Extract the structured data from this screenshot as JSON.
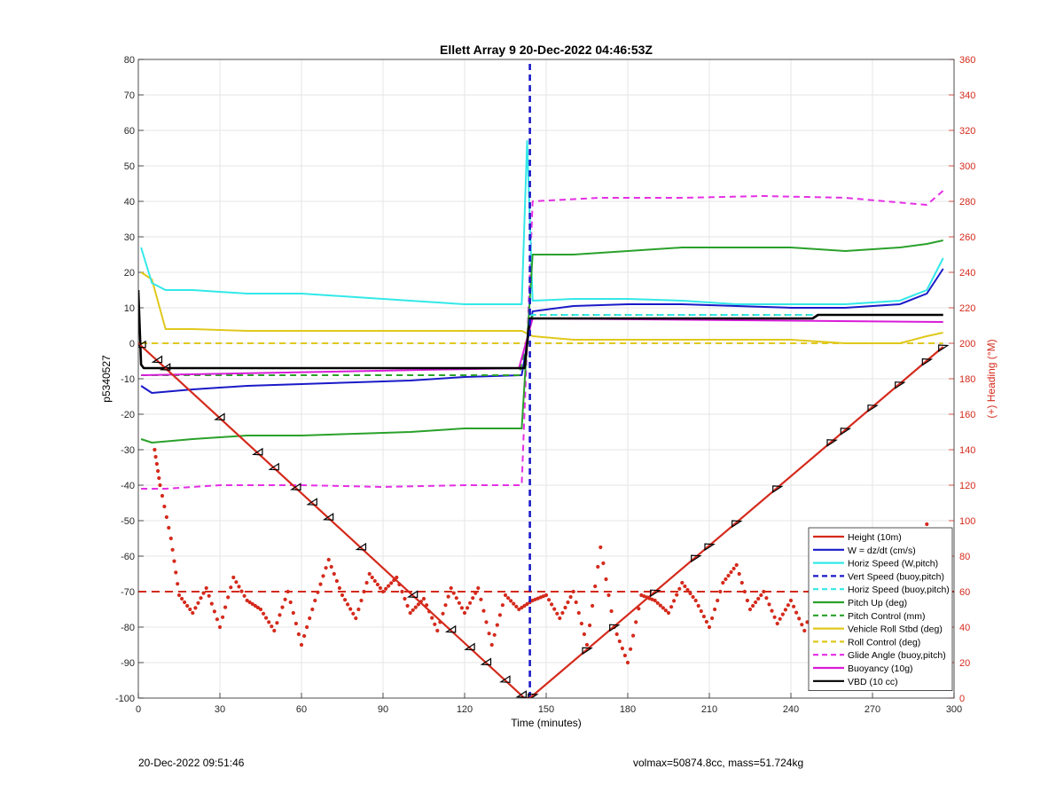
{
  "chart_data": {
    "type": "line",
    "title": "Ellett Array 9 20-Dec-2022 04:46:53Z",
    "xlabel": "Time (minutes)",
    "ylabel": "p5340527",
    "y2label": "(+) Heading (°M)",
    "xlim": [
      0,
      300
    ],
    "ylim": [
      -100,
      80
    ],
    "y2lim": [
      0,
      360
    ],
    "xticks": [
      0,
      30,
      60,
      90,
      120,
      150,
      180,
      210,
      240,
      270,
      300
    ],
    "yticks": [
      -100,
      -90,
      -80,
      -70,
      -60,
      -50,
      -40,
      -30,
      -20,
      -10,
      0,
      10,
      20,
      30,
      40,
      50,
      60,
      70,
      80
    ],
    "y2ticks": [
      0,
      20,
      40,
      60,
      80,
      100,
      120,
      140,
      160,
      180,
      200,
      220,
      240,
      260,
      280,
      300,
      320,
      340,
      360
    ],
    "grid": true,
    "legend_position": "bottom-right",
    "colors": {
      "height": "#d42a1c",
      "w": "#1a1ac8",
      "horiz": "#33e8e8",
      "pitch": "#2aa12a",
      "roll": "#e0c81c",
      "glide": "#e52ee5",
      "buoyancy": "#d81cd8",
      "vbd": "#000000",
      "heading": "#d42a1c"
    },
    "series": [
      {
        "name": "Height (10m)",
        "style": "solid",
        "x": [
          0,
          142,
          144,
          296
        ],
        "y": [
          0,
          -100,
          -100,
          -1
        ]
      },
      {
        "name": "W = dz/dt (cm/s)",
        "style": "solid",
        "x": [
          1,
          5,
          20,
          40,
          60,
          80,
          100,
          120,
          141,
          145,
          160,
          180,
          200,
          220,
          240,
          260,
          280,
          290,
          296
        ],
        "y": [
          -12,
          -14,
          -13,
          -12,
          -11.5,
          -11,
          -10.5,
          -9.5,
          -9,
          9,
          10.5,
          11,
          11,
          10.5,
          10,
          10,
          11,
          14,
          21
        ]
      },
      {
        "name": "Horiz Speed (W,pitch)",
        "style": "solid",
        "x": [
          1,
          5,
          10,
          20,
          40,
          60,
          80,
          100,
          120,
          141,
          143,
          145,
          160,
          180,
          200,
          220,
          240,
          260,
          280,
          290,
          296
        ],
        "y": [
          27,
          17,
          15,
          15,
          14,
          14,
          13,
          12,
          11,
          11,
          57,
          12,
          12.5,
          12.5,
          12,
          11,
          11,
          11,
          12,
          15,
          24
        ]
      },
      {
        "name": "Vert Speed (buoy,pitch)",
        "style": "dashed",
        "x": [
          144,
          144
        ],
        "y": [
          -100,
          80
        ]
      },
      {
        "name": "Horiz Speed (buoy,pitch)",
        "style": "dashed",
        "x": [
          144,
          150,
          200,
          250,
          296
        ],
        "y": [
          8,
          8,
          8,
          8,
          8
        ]
      },
      {
        "name": "Pitch Up (deg)",
        "style": "solid",
        "x": [
          1,
          5,
          20,
          40,
          60,
          80,
          100,
          120,
          141,
          145,
          160,
          180,
          200,
          220,
          240,
          260,
          280,
          290,
          296
        ],
        "y": [
          -27,
          -28,
          -27,
          -26,
          -26,
          -25.5,
          -25,
          -24,
          -24,
          25,
          25,
          26,
          27,
          27,
          27,
          26,
          27,
          28,
          29
        ]
      },
      {
        "name": "Pitch Control (mm)",
        "style": "dashed",
        "x": [
          1,
          140,
          145,
          296
        ],
        "y": [
          -9,
          -9,
          8,
          8
        ]
      },
      {
        "name": "Vehicle Roll Stbd (deg)",
        "style": "solid",
        "x": [
          1,
          5,
          10,
          20,
          40,
          60,
          80,
          100,
          120,
          141,
          145,
          160,
          180,
          200,
          220,
          240,
          260,
          280,
          290,
          296
        ],
        "y": [
          20,
          18,
          4,
          4,
          3.5,
          3.5,
          3.5,
          3.5,
          3.5,
          3.5,
          2,
          1,
          1,
          1,
          1,
          1,
          0,
          0,
          2,
          3
        ]
      },
      {
        "name": "Roll Control (deg)",
        "style": "dashed",
        "x": [
          1,
          140,
          145,
          296
        ],
        "y": [
          0,
          0,
          0,
          0
        ]
      },
      {
        "name": "Glide Angle (buoy,pitch)",
        "style": "dashed",
        "x": [
          1,
          10,
          30,
          60,
          90,
          120,
          141,
          145,
          170,
          200,
          230,
          260,
          290,
          296
        ],
        "y": [
          -41,
          -41,
          -40,
          -40,
          -40.5,
          -40,
          -40,
          40,
          41,
          41,
          41.5,
          41,
          39,
          43
        ]
      },
      {
        "name": "Buoyancy (10g)",
        "style": "solid",
        "x": [
          1,
          140,
          145,
          296
        ],
        "y": [
          -9,
          -7,
          7,
          6
        ]
      },
      {
        "name": "VBD (10 cc)",
        "style": "solid",
        "x": [
          0,
          1,
          2,
          142,
          144,
          150,
          248,
          250,
          296
        ],
        "y": [
          15,
          -6,
          -7,
          -7,
          7,
          7,
          7,
          8,
          8
        ]
      }
    ],
    "heading_series": {
      "x": [
        6,
        8,
        12,
        15,
        20,
        25,
        30,
        35,
        40,
        45,
        50,
        55,
        60,
        65,
        70,
        75,
        80,
        85,
        90,
        95,
        100,
        105,
        110,
        115,
        120,
        125,
        130,
        135,
        140,
        145,
        150,
        155,
        160,
        165,
        170,
        175,
        180,
        185,
        190,
        195,
        200,
        205,
        210,
        215,
        220,
        225,
        230,
        235,
        240,
        245,
        250,
        255,
        260,
        265,
        270,
        275,
        280,
        285,
        290,
        295
      ],
      "y": [
        140,
        120,
        90,
        58,
        48,
        62,
        40,
        68,
        55,
        50,
        38,
        60,
        30,
        55,
        78,
        58,
        45,
        70,
        60,
        68,
        48,
        56,
        38,
        62,
        48,
        62,
        30,
        58,
        50,
        55,
        58,
        45,
        60,
        30,
        85,
        40,
        20,
        58,
        55,
        48,
        65,
        55,
        40,
        65,
        75,
        50,
        60,
        42,
        55,
        38,
        62,
        48,
        70,
        45,
        55,
        38,
        60,
        70,
        98,
        55
      ]
    },
    "heading_mean": 60,
    "markers": {
      "descent_x": [
        1,
        7,
        10,
        30,
        44,
        50,
        58,
        64,
        70,
        82,
        101,
        115,
        122,
        128,
        135,
        141
      ],
      "ascent_x": [
        145,
        165,
        175,
        190,
        205,
        210,
        220,
        235,
        255,
        260,
        270,
        280,
        290,
        296
      ]
    }
  },
  "footer": {
    "left": "20-Dec-2022 09:51:46",
    "right": "volmax=50874.8cc, mass=51.724kg"
  }
}
